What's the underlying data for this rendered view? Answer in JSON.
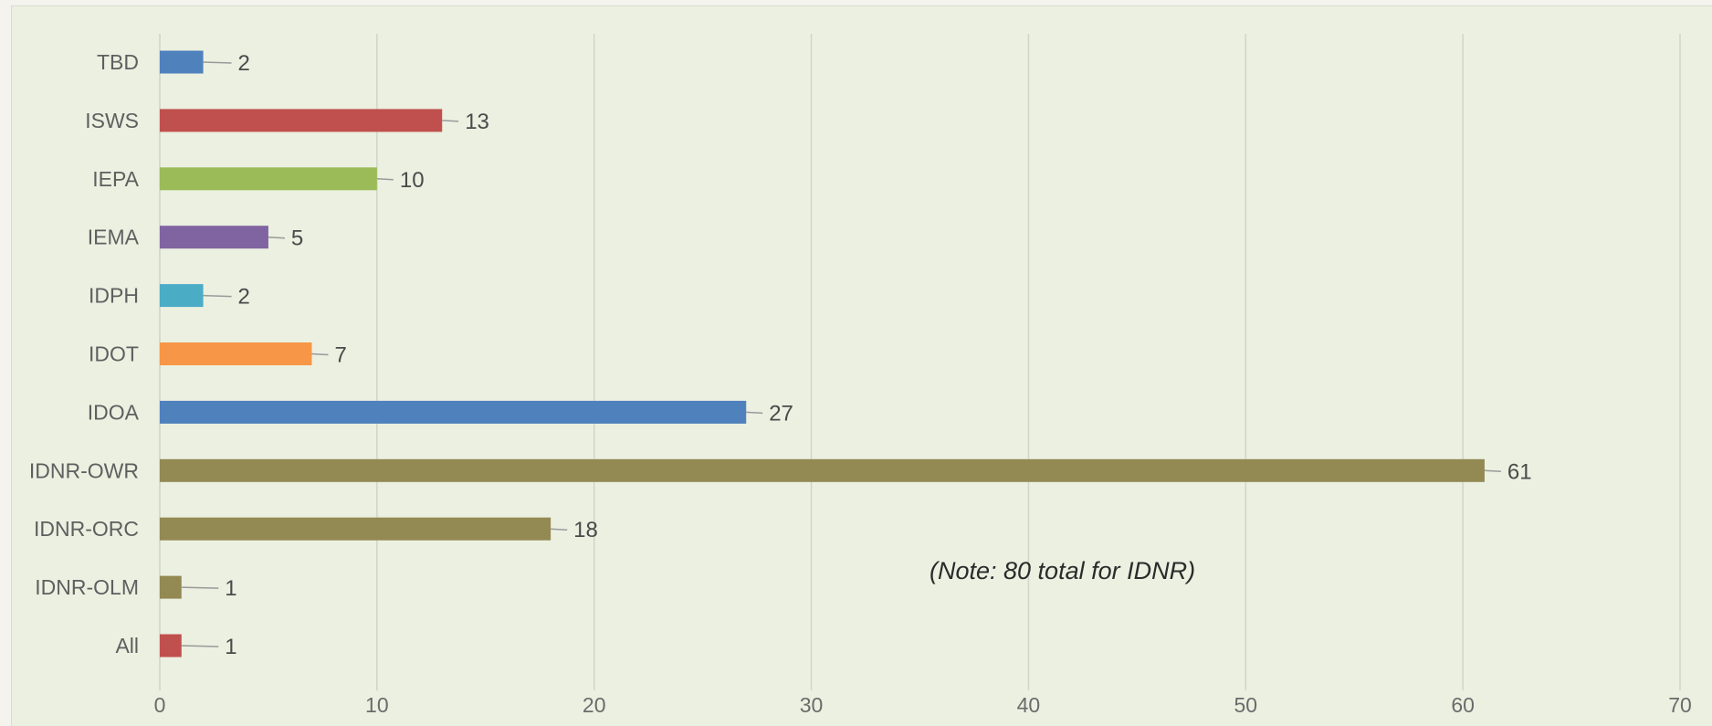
{
  "chart_data": {
    "type": "bar",
    "orientation": "horizontal",
    "categories": [
      "TBD",
      "ISWS",
      "IEPA",
      "IEMA",
      "IDPH",
      "IDOT",
      "IDOA",
      "IDNR-OWR",
      "IDNR-ORC",
      "IDNR-OLM",
      "All"
    ],
    "values": [
      2,
      13,
      10,
      5,
      2,
      7,
      27,
      61,
      18,
      1,
      1
    ],
    "bar_colors": [
      "#4f81bd",
      "#c0504d",
      "#9bbb59",
      "#8064a2",
      "#4bacc6",
      "#f79646",
      "#4f81bd",
      "#938953",
      "#938953",
      "#938953",
      "#c0504d"
    ],
    "title": "",
    "xlabel": "",
    "ylabel": "",
    "xlim": [
      0,
      70
    ],
    "xticks": [
      0,
      10,
      20,
      30,
      40,
      50,
      60,
      70
    ],
    "grid": true,
    "data_labels": true,
    "annotation": "(Note: 80 total for IDNR)"
  }
}
